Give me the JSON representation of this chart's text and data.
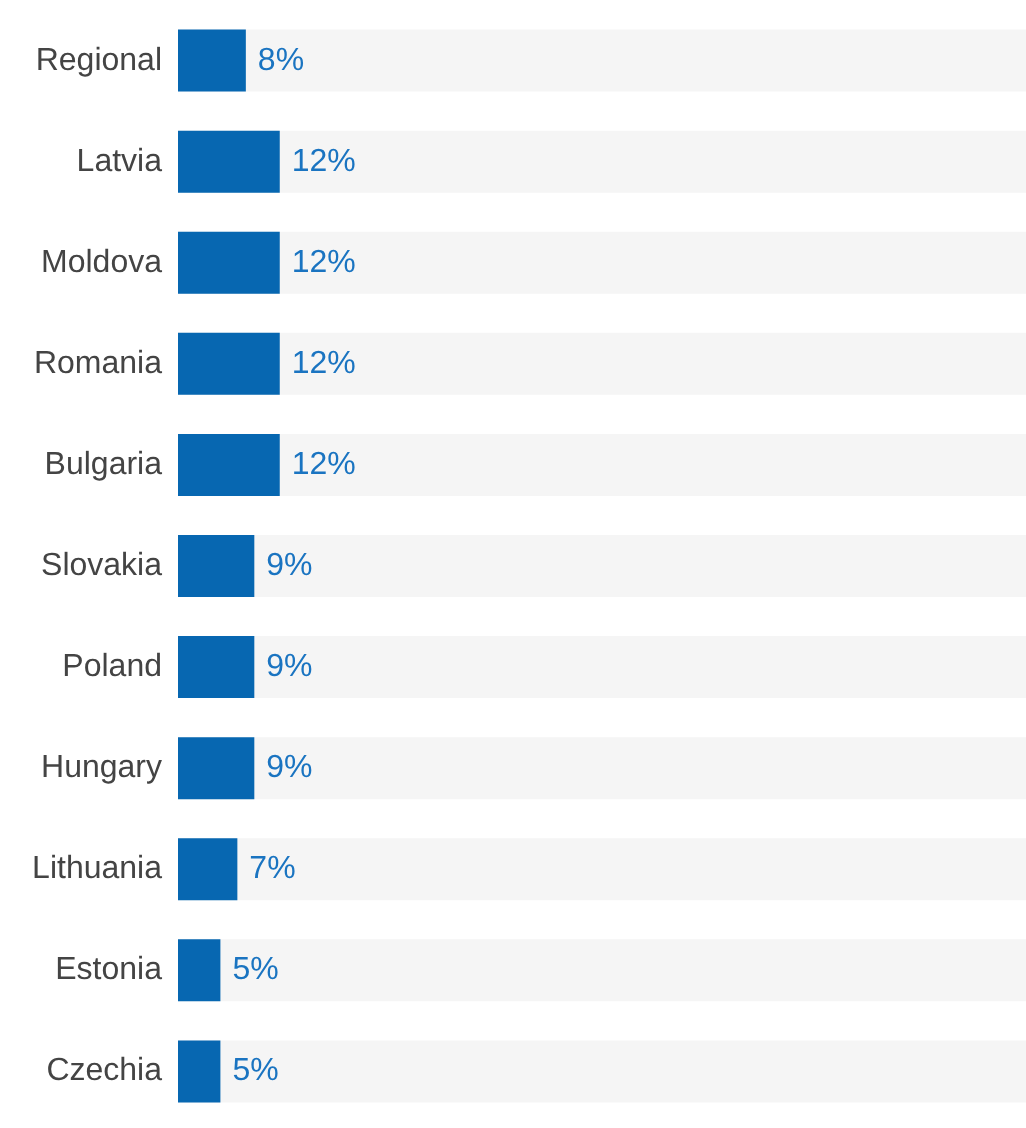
{
  "chart_data": {
    "type": "bar",
    "orientation": "horizontal",
    "categories": [
      "Regional",
      "Latvia",
      "Moldova",
      "Romania",
      "Bulgaria",
      "Slovakia",
      "Poland",
      "Hungary",
      "Lithuania",
      "Estonia",
      "Czechia"
    ],
    "values": [
      8,
      12,
      12,
      12,
      12,
      9,
      9,
      9,
      7,
      5,
      5
    ],
    "color": "#0767b1",
    "xlim": [
      0,
      100
    ],
    "data_labels": true,
    "value_labels": [
      "8%",
      "12%",
      "12%",
      "12%",
      "12%",
      "9%",
      "9%",
      "9%",
      "7%",
      "5%",
      "5%"
    ]
  }
}
